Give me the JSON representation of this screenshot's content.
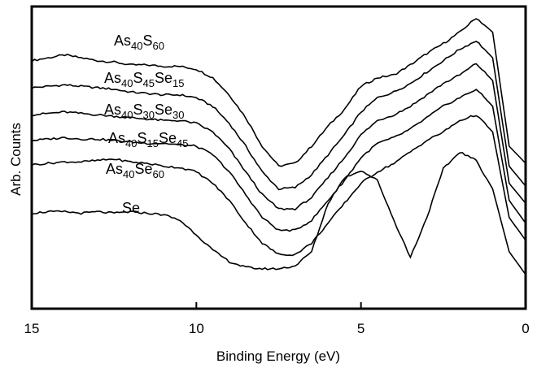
{
  "chart_data": {
    "type": "line",
    "xlabel": "Binding Energy (eV)",
    "ylabel": "Arb. Counts",
    "xlim": [
      15,
      0
    ],
    "x_reversed": true,
    "y_tick_labels": false,
    "grid": false,
    "legend": "none (inline labels)",
    "x_ticks": [
      15,
      10,
      5,
      0
    ],
    "x_tick_labels": [
      "15",
      "10",
      "5",
      "0"
    ],
    "x": [
      15,
      14.5,
      14,
      13.5,
      13,
      12.5,
      12,
      11.5,
      11,
      10.5,
      10,
      9.5,
      9,
      8.5,
      8,
      7.5,
      7,
      6.5,
      6,
      5.5,
      5,
      4.5,
      4,
      3.5,
      3,
      2.5,
      2,
      1.5,
      1,
      0.5,
      0
    ],
    "series": [
      {
        "name": "As40S60",
        "label_parts": [
          {
            "text": "As",
            "sub": false
          },
          {
            "text": "40",
            "sub": true
          },
          {
            "text": "S",
            "sub": false
          },
          {
            "text": "60",
            "sub": true
          }
        ],
        "values": [
          7.5,
          7.6,
          7.7,
          7.6,
          7.5,
          7.45,
          7.35,
          7.35,
          7.3,
          7.3,
          7.2,
          6.9,
          6.3,
          5.5,
          4.5,
          3.8,
          3.9,
          4.5,
          5.2,
          5.8,
          6.6,
          6.9,
          7.0,
          7.35,
          7.75,
          8.1,
          8.5,
          9.0,
          8.5,
          4.5,
          3.9
        ]
      },
      {
        "name": "As40S45Se15",
        "label_parts": [
          {
            "text": "As",
            "sub": false
          },
          {
            "text": "40",
            "sub": true
          },
          {
            "text": "S",
            "sub": false
          },
          {
            "text": "45",
            "sub": true
          },
          {
            "text": "Se",
            "sub": false
          },
          {
            "text": "15",
            "sub": true
          }
        ],
        "values": [
          6.55,
          6.6,
          6.65,
          6.6,
          6.55,
          6.5,
          6.4,
          6.35,
          6.3,
          6.3,
          6.2,
          5.9,
          5.3,
          4.5,
          3.6,
          3.0,
          3.05,
          3.5,
          4.2,
          4.9,
          5.7,
          6.2,
          6.4,
          6.7,
          7.1,
          7.5,
          7.9,
          8.2,
          7.6,
          3.8,
          3.1
        ]
      },
      {
        "name": "As40S30Se30",
        "label_parts": [
          {
            "text": "As",
            "sub": false
          },
          {
            "text": "40",
            "sub": true
          },
          {
            "text": "S",
            "sub": false
          },
          {
            "text": "30",
            "sub": true
          },
          {
            "text": "Se",
            "sub": false
          },
          {
            "text": "30",
            "sub": true
          }
        ],
        "values": [
          5.6,
          5.65,
          5.7,
          5.65,
          5.6,
          5.55,
          5.5,
          5.45,
          5.4,
          5.4,
          5.3,
          5.0,
          4.4,
          3.6,
          2.8,
          2.3,
          2.3,
          2.7,
          3.4,
          4.1,
          4.9,
          5.4,
          5.6,
          5.9,
          6.3,
          6.7,
          7.0,
          7.4,
          6.8,
          3.2,
          2.5
        ]
      },
      {
        "name": "As40S15Se45",
        "label_parts": [
          {
            "text": "As",
            "sub": false
          },
          {
            "text": "40",
            "sub": true
          },
          {
            "text": "S",
            "sub": false
          },
          {
            "text": "15",
            "sub": true
          },
          {
            "text": "Se",
            "sub": false
          },
          {
            "text": "45",
            "sub": true
          }
        ],
        "values": [
          4.7,
          4.75,
          4.8,
          4.75,
          4.75,
          4.7,
          4.65,
          4.6,
          4.6,
          4.55,
          4.5,
          4.2,
          3.6,
          2.8,
          2.0,
          1.55,
          1.55,
          1.9,
          2.6,
          3.3,
          4.1,
          4.6,
          4.8,
          5.1,
          5.5,
          5.9,
          6.2,
          6.5,
          5.9,
          2.6,
          1.8
        ]
      },
      {
        "name": "As40Se60",
        "label_parts": [
          {
            "text": "As",
            "sub": false
          },
          {
            "text": "40",
            "sub": true
          },
          {
            "text": "Se",
            "sub": false
          },
          {
            "text": "60",
            "sub": true
          }
        ],
        "values": [
          3.85,
          3.9,
          3.95,
          3.95,
          4.0,
          4.05,
          3.95,
          3.9,
          3.8,
          3.75,
          3.6,
          3.2,
          2.6,
          1.8,
          1.1,
          0.7,
          0.7,
          1.1,
          1.8,
          2.5,
          3.2,
          3.6,
          3.9,
          4.3,
          4.7,
          5.0,
          5.4,
          5.6,
          5.0,
          2.0,
          1.2
        ]
      },
      {
        "name": "Se",
        "label_parts": [
          {
            "text": "Se",
            "sub": false
          }
        ],
        "values": [
          2.15,
          2.2,
          2.2,
          2.15,
          2.2,
          2.15,
          2.2,
          2.15,
          2.1,
          1.9,
          1.4,
          0.85,
          0.45,
          0.25,
          0.2,
          0.2,
          0.3,
          0.8,
          2.5,
          3.4,
          3.65,
          3.3,
          1.9,
          0.6,
          2.0,
          3.7,
          4.3,
          4.0,
          3.0,
          0.8,
          0.0
        ]
      }
    ]
  }
}
